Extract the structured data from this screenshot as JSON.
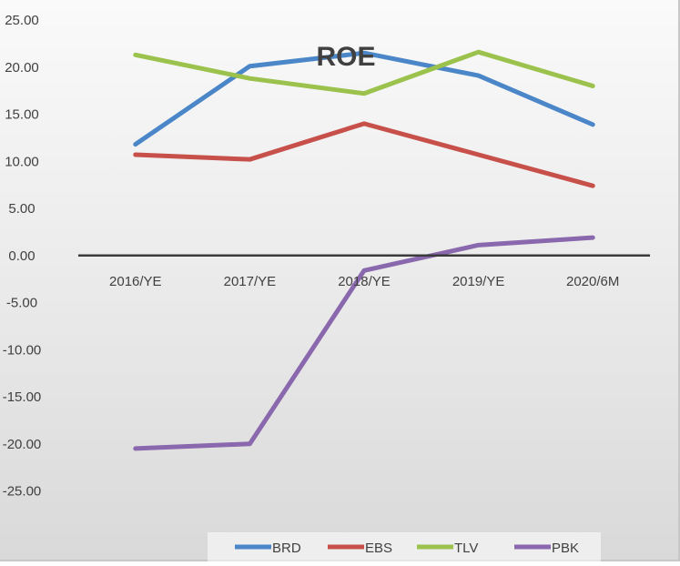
{
  "chart_data": {
    "type": "line",
    "title": "ROE",
    "categories": [
      "2016/YE",
      "2017/YE",
      "2018/YE",
      "2019/YE",
      "2020/6M"
    ],
    "ylim": [
      -30,
      25
    ],
    "yticks": [
      "25.00",
      "20.00",
      "15.00",
      "10.00",
      "5.00",
      "0.00",
      "-5.00",
      "-10.00",
      "-15.00",
      "-20.00",
      "-25.00"
    ],
    "grid": false,
    "legend_position": "bottom",
    "series": [
      {
        "name": "BRD",
        "color": "#4a86c8",
        "values": [
          11.8,
          20.1,
          21.5,
          19.1,
          13.9
        ]
      },
      {
        "name": "EBS",
        "color": "#c8504a",
        "values": [
          10.7,
          10.2,
          14.0,
          10.7,
          7.4
        ]
      },
      {
        "name": "TLV",
        "color": "#9bc24c",
        "values": [
          21.3,
          18.8,
          17.2,
          21.6,
          18.0
        ]
      },
      {
        "name": "PBK",
        "color": "#8a68ad",
        "values": [
          -20.5,
          -20.0,
          -1.6,
          1.1,
          1.9
        ]
      }
    ]
  }
}
